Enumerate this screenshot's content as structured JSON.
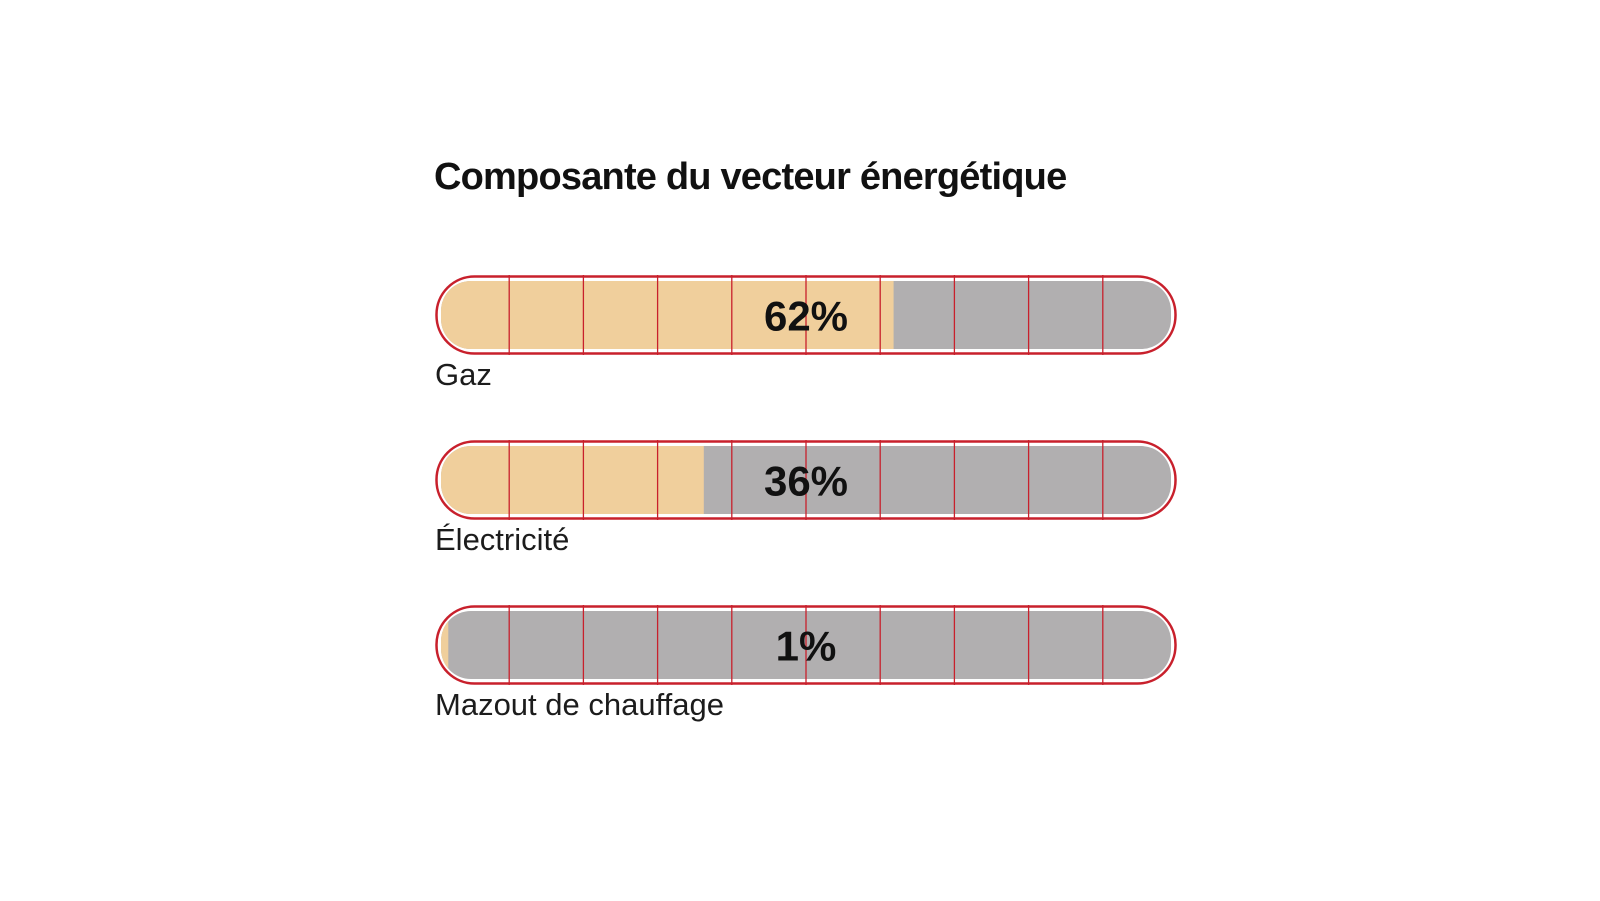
{
  "chart_data": {
    "type": "bar",
    "title": "Composante du vecteur énergétique",
    "categories": [
      "Gaz",
      "Électricité",
      "Mazout de chauffage"
    ],
    "values": [
      62,
      36,
      1
    ],
    "value_labels": [
      "62%",
      "36%",
      "1%"
    ],
    "unit": "%",
    "ylim": [
      0,
      100
    ],
    "grid_divisions": 10,
    "grid": true,
    "colors": {
      "fill": "#f0cf9c",
      "track": "#b1afb0",
      "border": "#c8202c",
      "grid": "#c8202c",
      "text": "#111111"
    }
  }
}
